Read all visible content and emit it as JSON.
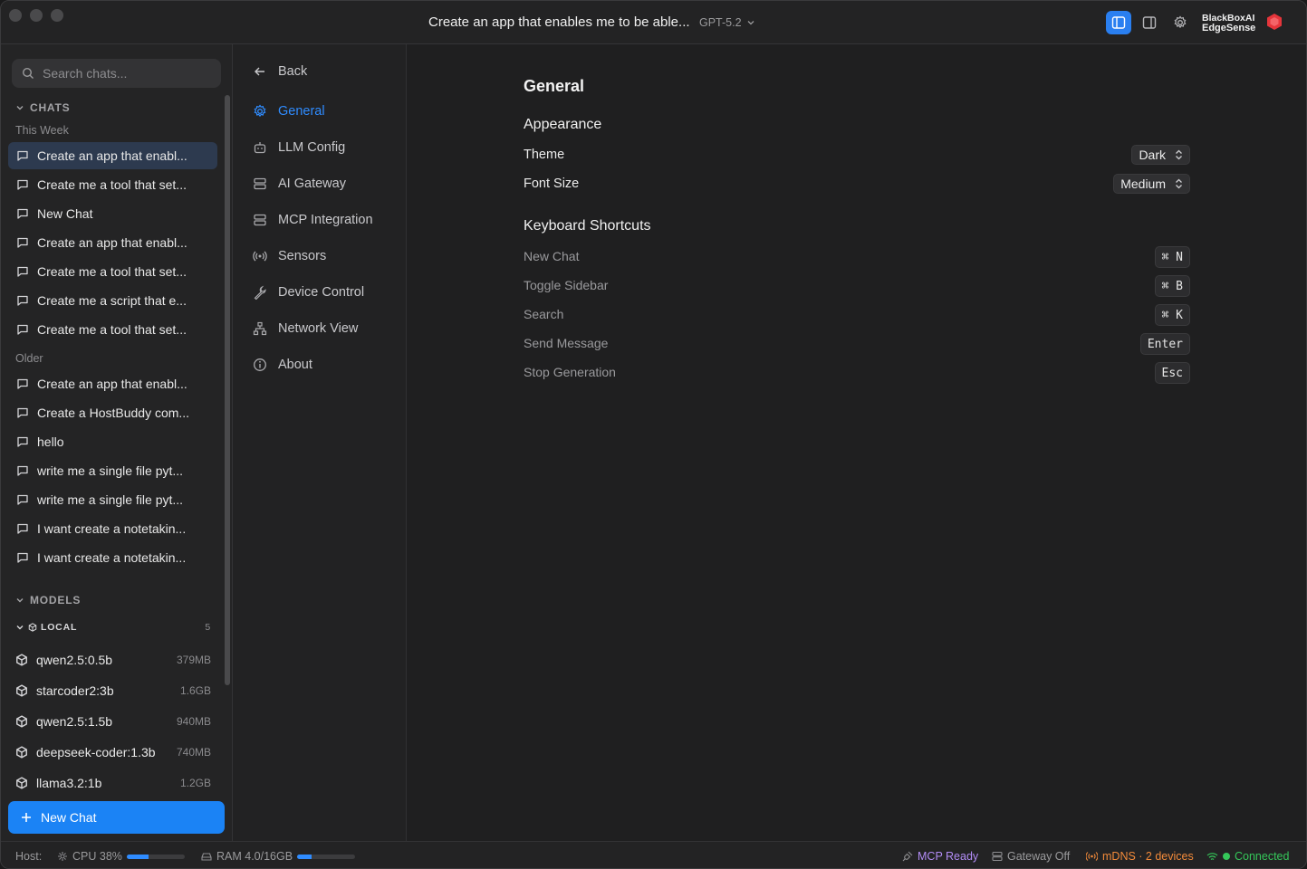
{
  "titlebar": {
    "title": "Create an app that enables me to be able...",
    "model": "GPT-5.2",
    "brand_line1": "BlackBoxAI",
    "brand_line2": "EdgeSense",
    "accent": "#2a7ff0"
  },
  "sidebar": {
    "search_placeholder": "Search chats...",
    "chats_heading": "CHATS",
    "group_this_week": "This Week",
    "this_week": [
      "Create an app that enabl...",
      "Create me a tool that set...",
      "New Chat",
      "Create an app that enabl...",
      "Create me a tool that set...",
      "Create me a script that e...",
      "Create me a tool that set..."
    ],
    "group_older": "Older",
    "older": [
      "Create an app that enabl...",
      "Create a HostBuddy com...",
      "hello",
      "write me a single file pyt...",
      "write me a single file pyt...",
      "I want create a notetakin...",
      "I want create a notetakin..."
    ],
    "models_heading": "MODELS",
    "local_heading": "LOCAL",
    "local_count": "5",
    "models": [
      {
        "name": "qwen2.5:0.5b",
        "size": "379MB"
      },
      {
        "name": "starcoder2:3b",
        "size": "1.6GB"
      },
      {
        "name": "qwen2.5:1.5b",
        "size": "940MB"
      },
      {
        "name": "deepseek-coder:1.3b",
        "size": "740MB"
      },
      {
        "name": "llama3.2:1b",
        "size": "1.2GB"
      }
    ],
    "new_chat": "New Chat"
  },
  "settings_nav": {
    "back": "Back",
    "items": [
      "General",
      "LLM Config",
      "AI Gateway",
      "MCP Integration",
      "Sensors",
      "Device Control",
      "Network View",
      "About"
    ],
    "active": "General"
  },
  "general": {
    "title": "General",
    "appearance": "Appearance",
    "theme_label": "Theme",
    "theme_value": "Dark",
    "font_size_label": "Font Size",
    "font_size_value": "Medium",
    "shortcuts_heading": "Keyboard Shortcuts",
    "shortcuts": [
      {
        "label": "New Chat",
        "key": "⌘ N"
      },
      {
        "label": "Toggle Sidebar",
        "key": "⌘ B"
      },
      {
        "label": "Search",
        "key": "⌘ K"
      },
      {
        "label": "Send Message",
        "key": "Enter"
      },
      {
        "label": "Stop Generation",
        "key": "Esc"
      }
    ]
  },
  "statusbar": {
    "host": "Host:",
    "cpu": "CPU 38%",
    "cpu_fraction": 0.38,
    "ram": "RAM 4.0/16GB",
    "ram_fraction": 0.25,
    "mcp": "MCP Ready",
    "gateway": "Gateway Off",
    "mdns": "mDNS · 2 devices",
    "connection": "Connected",
    "colors": {
      "mcp": "#b28cf5",
      "mdns": "#f28a3a",
      "connected": "#35c75a"
    }
  }
}
